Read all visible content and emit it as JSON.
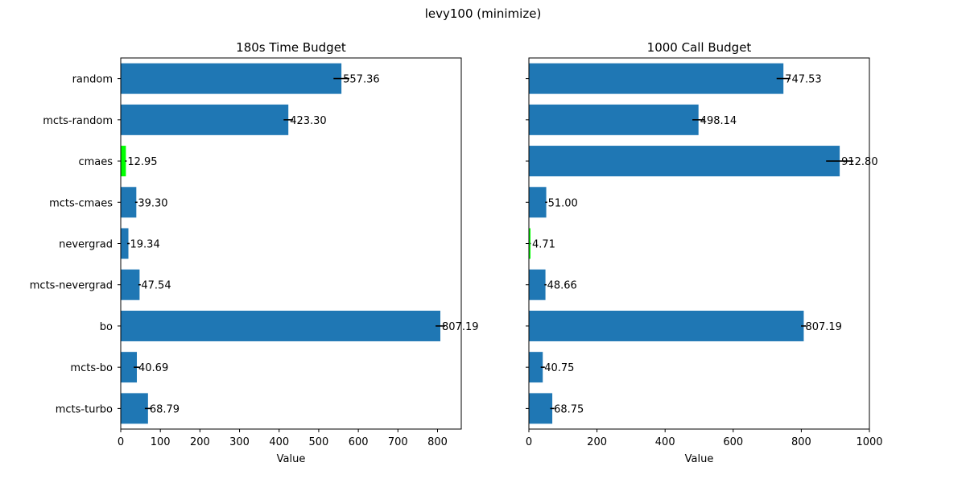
{
  "figure": {
    "suptitle": "levy100 (minimize)"
  },
  "colors": {
    "bar": "#1f77b4",
    "best": "#00ff00",
    "errorbar": "#000000"
  },
  "chart_data": [
    {
      "type": "bar",
      "orientation": "horizontal",
      "title": "180s Time Budget",
      "xlabel": "Value",
      "ylabel": "",
      "categories": [
        "random",
        "mcts-random",
        "cmaes",
        "mcts-cmaes",
        "nevergrad",
        "mcts-nevergrad",
        "bo",
        "mcts-bo",
        "mcts-turbo"
      ],
      "values": [
        557.36,
        423.3,
        12.95,
        39.3,
        19.34,
        47.54,
        807.19,
        40.69,
        68.79
      ],
      "value_labels": [
        "557.36",
        "423.30",
        "12.95",
        "39.30",
        "19.34",
        "47.54",
        "807.19",
        "40.69",
        "68.79"
      ],
      "errors": [
        20,
        12,
        2,
        3,
        3,
        3,
        12,
        8,
        8
      ],
      "best_index": 2,
      "xlim": [
        0,
        860
      ],
      "xticks": [
        0,
        100,
        200,
        300,
        400,
        500,
        600,
        700,
        800
      ],
      "xtick_labels": [
        "0",
        "100",
        "200",
        "300",
        "400",
        "500",
        "600",
        "700",
        "800"
      ]
    },
    {
      "type": "bar",
      "orientation": "horizontal",
      "title": "1000 Call Budget",
      "xlabel": "Value",
      "ylabel": "",
      "categories": [
        "random",
        "mcts-random",
        "cmaes",
        "mcts-cmaes",
        "nevergrad",
        "mcts-nevergrad",
        "bo",
        "mcts-bo",
        "mcts-turbo"
      ],
      "values": [
        747.53,
        498.14,
        912.8,
        51.0,
        4.71,
        48.66,
        807.19,
        40.75,
        68.75
      ],
      "value_labels": [
        "747.53",
        "498.14",
        "912.80",
        "51.00",
        "4.71",
        "48.66",
        "807.19",
        "40.75",
        "68.75"
      ],
      "errors": [
        20,
        18,
        40,
        3,
        1,
        3,
        8,
        6,
        6
      ],
      "best_index": 4,
      "xlim": [
        0,
        1000
      ],
      "xticks": [
        0,
        200,
        400,
        600,
        800,
        1000
      ],
      "xtick_labels": [
        "0",
        "200",
        "400",
        "600",
        "800",
        "1000"
      ]
    }
  ]
}
